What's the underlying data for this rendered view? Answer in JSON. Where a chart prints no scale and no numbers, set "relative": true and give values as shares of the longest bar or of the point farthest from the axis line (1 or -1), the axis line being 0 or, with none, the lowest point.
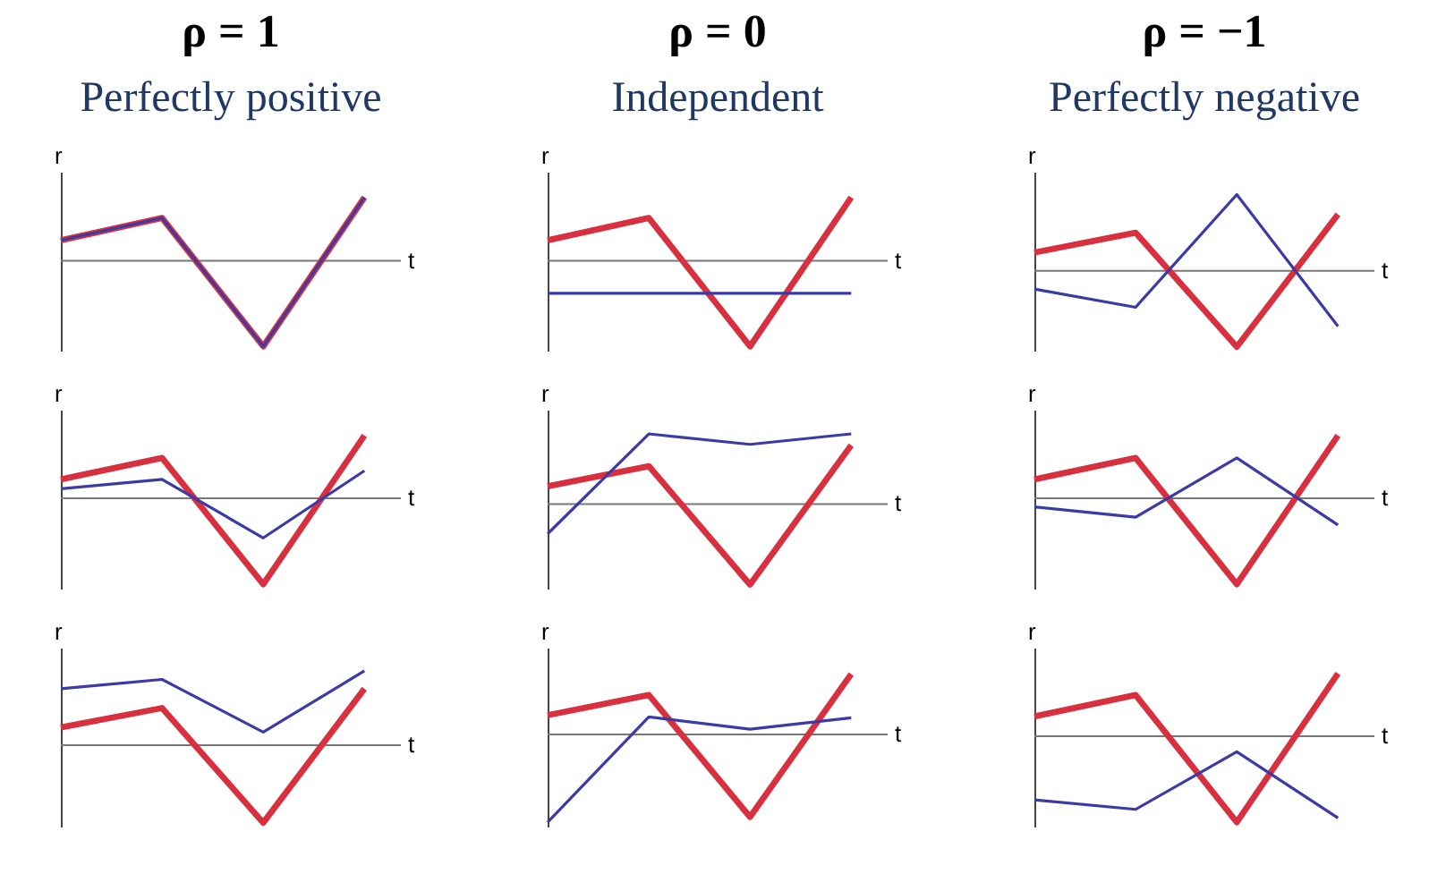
{
  "chart_data": [
    {
      "type": "line",
      "title": "ρ = 1",
      "subtitle": "Perfectly positive",
      "xlabel": "t",
      "ylabel": "r",
      "relative": true,
      "categories": [
        null,
        null,
        null,
        null
      ],
      "series": [
        {
          "color": "#d9303f",
          "values": [
            0.24,
            0.5,
            -1,
            0.74
          ]
        },
        {
          "color": "#3b3ba8",
          "values": [
            0.24,
            0.5,
            -1,
            0.74
          ]
        }
      ]
    },
    {
      "type": "line",
      "title": "ρ = 0",
      "subtitle": "Independent",
      "xlabel": "t",
      "ylabel": "r",
      "relative": true,
      "categories": [
        null,
        null,
        null,
        null
      ],
      "series": [
        {
          "color": "#d9303f",
          "values": [
            0.24,
            0.5,
            -1,
            0.74
          ]
        },
        {
          "color": "#3b3ba8",
          "values": [
            -0.38,
            -0.38,
            -0.38,
            -0.38
          ]
        }
      ]
    },
    {
      "type": "line",
      "title": "ρ = −1",
      "subtitle": "Perfectly negative",
      "xlabel": "t",
      "ylabel": "r",
      "relative": true,
      "categories": [
        null,
        null,
        null,
        null
      ],
      "series": [
        {
          "color": "#d9303f",
          "values": [
            0.24,
            0.5,
            -1,
            0.74
          ]
        },
        {
          "color": "#3b3ba8",
          "values": [
            -0.24,
            -0.48,
            1,
            -0.73
          ]
        }
      ]
    },
    {
      "type": "line",
      "xlabel": "t",
      "ylabel": "r",
      "relative": true,
      "categories": [
        null,
        null,
        null,
        null
      ],
      "series": [
        {
          "color": "#d9303f",
          "values": [
            0.22,
            0.47,
            -1,
            0.73
          ]
        },
        {
          "color": "#3b3ba8",
          "values": [
            0.11,
            0.22,
            -0.46,
            0.32
          ]
        }
      ]
    },
    {
      "type": "line",
      "xlabel": "t",
      "ylabel": "r",
      "relative": true,
      "categories": [
        null,
        null,
        null,
        null
      ],
      "series": [
        {
          "color": "#d9303f",
          "values": [
            0.22,
            0.47,
            -1,
            0.73
          ]
        },
        {
          "color": "#3b3ba8",
          "values": [
            -0.37,
            0.87,
            0.74,
            0.87
          ]
        }
      ]
    },
    {
      "type": "line",
      "xlabel": "t",
      "ylabel": "r",
      "relative": true,
      "categories": [
        null,
        null,
        null,
        null
      ],
      "series": [
        {
          "color": "#d9303f",
          "values": [
            0.22,
            0.47,
            -1,
            0.73
          ]
        },
        {
          "color": "#3b3ba8",
          "values": [
            -0.1,
            -0.22,
            0.47,
            -0.31
          ]
        }
      ]
    },
    {
      "type": "line",
      "xlabel": "t",
      "ylabel": "r",
      "relative": true,
      "categories": [
        null,
        null,
        null,
        null
      ],
      "series": [
        {
          "color": "#d9303f",
          "values": [
            0.23,
            0.48,
            -1,
            0.73
          ]
        },
        {
          "color": "#3b3ba8",
          "values": [
            0.73,
            0.85,
            0.17,
            0.96
          ]
        }
      ]
    },
    {
      "type": "line",
      "xlabel": "t",
      "ylabel": "r",
      "relative": true,
      "categories": [
        null,
        null,
        null,
        null
      ],
      "series": [
        {
          "color": "#d9303f",
          "values": [
            0.22,
            0.45,
            -0.94,
            0.69
          ]
        },
        {
          "color": "#3b3ba8",
          "values": [
            -1,
            0.2,
            0.06,
            0.19
          ]
        }
      ]
    },
    {
      "type": "line",
      "xlabel": "t",
      "ylabel": "r",
      "relative": true,
      "categories": [
        null,
        null,
        null,
        null
      ],
      "series": [
        {
          "color": "#d9303f",
          "values": [
            0.23,
            0.48,
            -1,
            0.73
          ]
        },
        {
          "color": "#3b3ba8",
          "values": [
            -0.74,
            -0.85,
            -0.18,
            -0.95
          ]
        }
      ]
    }
  ]
}
